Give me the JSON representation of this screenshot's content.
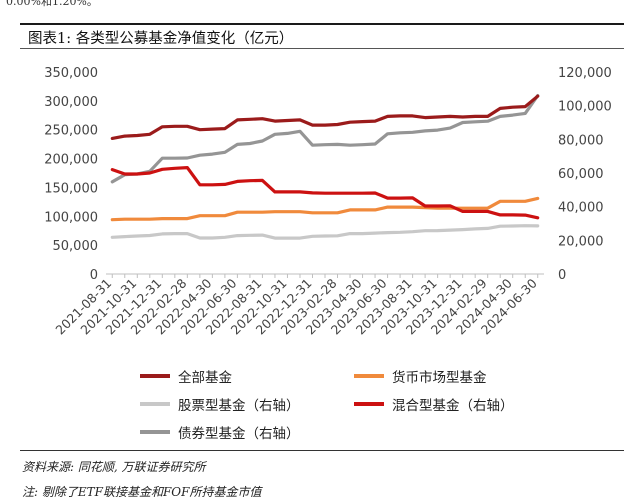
{
  "header": {
    "top_clip": "0.00%和1.20%。",
    "title": "图表1: 各类型公募基金净值变化（亿元）"
  },
  "footer": {
    "source": "资料来源: 同花顺, 万联证券研究所",
    "note": "注: 剔除了ETF联接基金和FOF所持基金市值"
  },
  "colors": {
    "all_funds": "#9b1b1b",
    "money_market": "#f08a3c",
    "stock": "#c8c8c8",
    "hybrid": "#cc1111",
    "bond": "#959595"
  },
  "chart_data": {
    "type": "line",
    "x": [
      "2021-08-31",
      "2021-09-30",
      "2021-10-31",
      "2021-11-30",
      "2021-12-31",
      "2022-01-31",
      "2022-02-28",
      "2022-03-31",
      "2022-04-30",
      "2022-05-31",
      "2022-06-30",
      "2022-07-31",
      "2022-08-31",
      "2022-09-30",
      "2022-10-31",
      "2022-11-30",
      "2022-12-31",
      "2023-01-31",
      "2023-02-28",
      "2023-03-31",
      "2023-04-30",
      "2023-05-31",
      "2023-06-30",
      "2023-07-31",
      "2023-08-31",
      "2023-09-30",
      "2023-10-31",
      "2023-11-30",
      "2023-12-31",
      "2024-01-31",
      "2024-02-29",
      "2024-03-31",
      "2024-04-30",
      "2024-05-31",
      "2024-06-30"
    ],
    "x_tick_labels": [
      "2021-08-31",
      "2021-10-31",
      "2021-12-31",
      "2022-02-28",
      "2022-04-30",
      "2022-06-30",
      "2022-08-31",
      "2022-10-31",
      "2022-12-31",
      "2023-02-28",
      "2023-04-30",
      "2023-06-30",
      "2023-08-31",
      "2023-10-31",
      "2023-12-31",
      "2024-02-29",
      "2024-04-30",
      "2024-06-30"
    ],
    "y_left": {
      "ylim": [
        0,
        350000
      ],
      "ticks": [
        0,
        50000,
        100000,
        150000,
        200000,
        250000,
        300000,
        350000
      ],
      "tick_labels": [
        "0",
        "50,000",
        "100,000",
        "150,000",
        "200,000",
        "250,000",
        "300,000",
        "350,000"
      ]
    },
    "y_right": {
      "ylim": [
        0,
        120000
      ],
      "ticks": [
        0,
        20000,
        40000,
        60000,
        80000,
        100000,
        120000
      ],
      "tick_labels": [
        "0",
        "20,000",
        "40,000",
        "60,000",
        "80,000",
        "100,000",
        "120,000"
      ]
    },
    "grid": false,
    "legend_position": "bottom",
    "series": [
      {
        "name": "全部基金",
        "axis": "left",
        "color_key": "all_funds",
        "values": [
          235000,
          239000,
          240000,
          242000,
          255000,
          256000,
          256000,
          250000,
          251000,
          252000,
          267000,
          268000,
          269000,
          265000,
          266000,
          267000,
          258000,
          258000,
          259000,
          263000,
          264000,
          265000,
          273000,
          274000,
          274000,
          271000,
          272000,
          273000,
          272000,
          273000,
          273000,
          287000,
          289000,
          290000,
          308000
        ]
      },
      {
        "name": "货币市场型基金",
        "axis": "left",
        "color_key": "money_market",
        "values": [
          94000,
          95000,
          95000,
          95000,
          96000,
          96000,
          96000,
          101000,
          101000,
          101000,
          107000,
          107000,
          107000,
          108000,
          108000,
          108000,
          106000,
          106000,
          106000,
          111000,
          111000,
          111000,
          116000,
          116000,
          116000,
          115000,
          114000,
          114000,
          114000,
          114000,
          114000,
          126000,
          126000,
          126000,
          131000
        ]
      },
      {
        "name": "股票型基金（右轴）",
        "axis": "right",
        "color_key": "stock",
        "values": [
          21800,
          22200,
          22600,
          22900,
          23800,
          24000,
          24000,
          21400,
          21400,
          21800,
          22800,
          23000,
          23100,
          21300,
          21300,
          21300,
          22400,
          22600,
          22700,
          24000,
          24000,
          24300,
          24600,
          24800,
          25100,
          25700,
          25800,
          26100,
          26400,
          26800,
          27100,
          28400,
          28500,
          28700,
          28600
        ]
      },
      {
        "name": "混合型基金（右轴）",
        "axis": "right",
        "color_key": "hybrid",
        "values": [
          62000,
          59400,
          59400,
          60000,
          62200,
          62800,
          63200,
          53000,
          53000,
          53200,
          55000,
          55400,
          55600,
          48800,
          48800,
          48800,
          48200,
          48000,
          48000,
          48000,
          48000,
          48100,
          45100,
          45100,
          45200,
          40400,
          40400,
          40500,
          37200,
          37200,
          37200,
          35100,
          35100,
          35000,
          33400
        ]
      },
      {
        "name": "债券型基金（右轴）",
        "axis": "right",
        "color_key": "bond",
        "values": [
          54800,
          59000,
          59400,
          61000,
          68800,
          68800,
          68900,
          70600,
          71200,
          72300,
          77000,
          77500,
          79000,
          83000,
          83500,
          84800,
          76500,
          76800,
          77000,
          76500,
          76800,
          77200,
          83300,
          83900,
          84200,
          85000,
          85500,
          86700,
          90000,
          90400,
          90800,
          93600,
          94400,
          95400,
          106000
        ]
      }
    ]
  }
}
